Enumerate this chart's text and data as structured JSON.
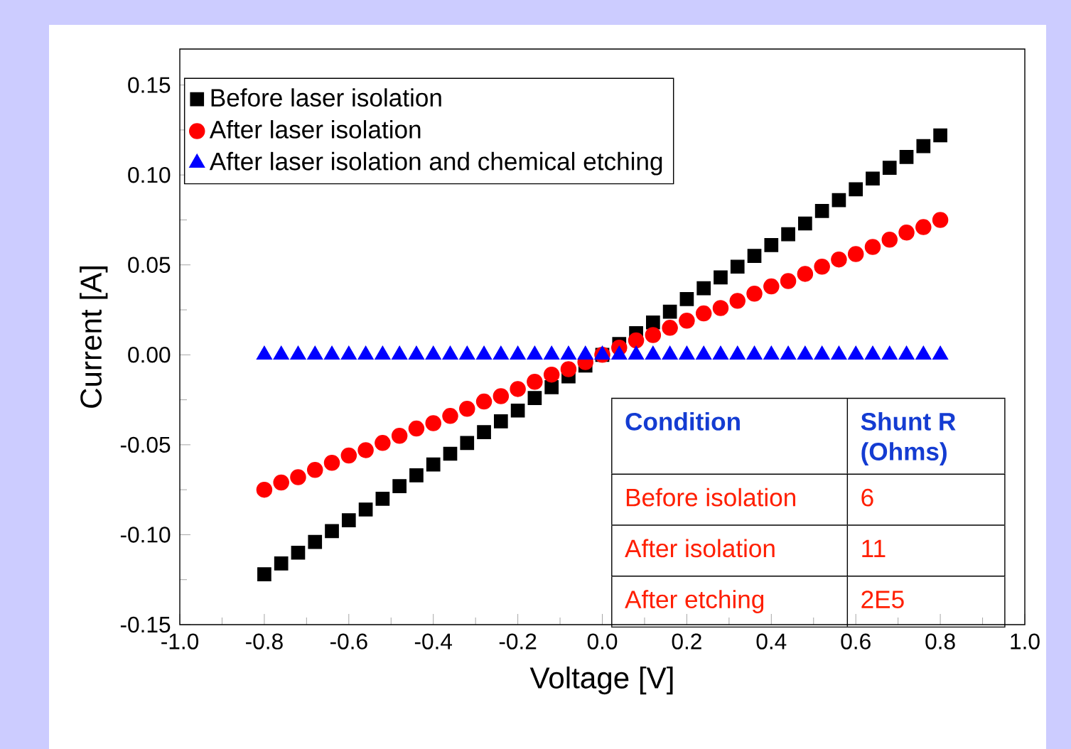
{
  "chart_data": {
    "type": "scatter",
    "xlabel": "Voltage [V]",
    "ylabel": "Current [A]",
    "x": [
      -0.8,
      -0.76,
      -0.72,
      -0.68,
      -0.64,
      -0.6,
      -0.56,
      -0.52,
      -0.48,
      -0.44,
      -0.4,
      -0.36,
      -0.32,
      -0.28,
      -0.24,
      -0.2,
      -0.16,
      -0.12,
      -0.08,
      -0.04,
      0,
      0.04,
      0.08,
      0.12,
      0.16,
      0.2,
      0.24,
      0.28,
      0.32,
      0.36,
      0.4,
      0.44,
      0.48,
      0.52,
      0.56,
      0.6,
      0.64,
      0.68,
      0.72,
      0.76,
      0.8
    ],
    "series": [
      {
        "name": "Before laser isolation",
        "color": "#000000",
        "marker": "square",
        "values": [
          -0.122,
          -0.116,
          -0.11,
          -0.104,
          -0.098,
          -0.092,
          -0.086,
          -0.08,
          -0.073,
          -0.067,
          -0.061,
          -0.055,
          -0.049,
          -0.043,
          -0.037,
          -0.031,
          -0.024,
          -0.018,
          -0.012,
          -0.006,
          0,
          0.006,
          0.012,
          0.018,
          0.024,
          0.031,
          0.037,
          0.043,
          0.049,
          0.055,
          0.061,
          0.067,
          0.073,
          0.08,
          0.086,
          0.092,
          0.098,
          0.104,
          0.11,
          0.116,
          0.122
        ]
      },
      {
        "name": "After laser isolation",
        "color": "#ff0000",
        "marker": "circle",
        "values": [
          -0.075,
          -0.071,
          -0.068,
          -0.064,
          -0.06,
          -0.056,
          -0.053,
          -0.049,
          -0.045,
          -0.041,
          -0.038,
          -0.034,
          -0.03,
          -0.026,
          -0.023,
          -0.019,
          -0.015,
          -0.011,
          -0.008,
          -0.004,
          0,
          0.004,
          0.008,
          0.011,
          0.015,
          0.019,
          0.023,
          0.026,
          0.03,
          0.034,
          0.038,
          0.041,
          0.045,
          0.049,
          0.053,
          0.056,
          0.06,
          0.064,
          0.068,
          0.071,
          0.075
        ]
      },
      {
        "name": "After laser isolation and chemical etching",
        "color": "#0000ff",
        "marker": "triangle",
        "values": [
          0,
          0,
          0,
          0,
          0,
          0,
          0,
          0,
          0,
          0,
          0,
          0,
          0,
          0,
          0,
          0,
          0,
          0,
          0,
          0,
          0,
          0,
          0,
          0,
          0,
          0,
          0,
          0,
          0,
          0,
          0,
          0,
          0,
          0,
          0,
          0,
          0,
          0,
          0,
          0,
          0
        ]
      }
    ],
    "xlim": [
      -1,
      1
    ],
    "xticks": [
      {
        "value": -1,
        "label": "-1.0"
      },
      {
        "value": -0.8,
        "label": "-0.8"
      },
      {
        "value": -0.6,
        "label": "-0.6"
      },
      {
        "value": -0.4,
        "label": "-0.4"
      },
      {
        "value": -0.2,
        "label": "-0.2"
      },
      {
        "value": 0,
        "label": "0.0"
      },
      {
        "value": 0.2,
        "label": "0.2"
      },
      {
        "value": 0.4,
        "label": "0.4"
      },
      {
        "value": 0.6,
        "label": "0.6"
      },
      {
        "value": 0.8,
        "label": "0.8"
      },
      {
        "value": 1,
        "label": "1.0"
      }
    ],
    "ylim": [
      -0.15,
      0.17
    ],
    "yticks": [
      {
        "value": -0.15,
        "label": "-0.15"
      },
      {
        "value": -0.1,
        "label": "-0.10"
      },
      {
        "value": -0.05,
        "label": "-0.05"
      },
      {
        "value": 0,
        "label": "0.00"
      },
      {
        "value": 0.05,
        "label": "0.05"
      },
      {
        "value": 0.1,
        "label": "0.10"
      },
      {
        "value": 0.15,
        "label": "0.15"
      }
    ],
    "legend": "top left",
    "grid": false,
    "annotations": [
      "Condition",
      "Shunt R (Ohms)",
      "Before isolation",
      "6",
      "After isolation",
      "11",
      "After etching",
      "2E5"
    ]
  }
}
